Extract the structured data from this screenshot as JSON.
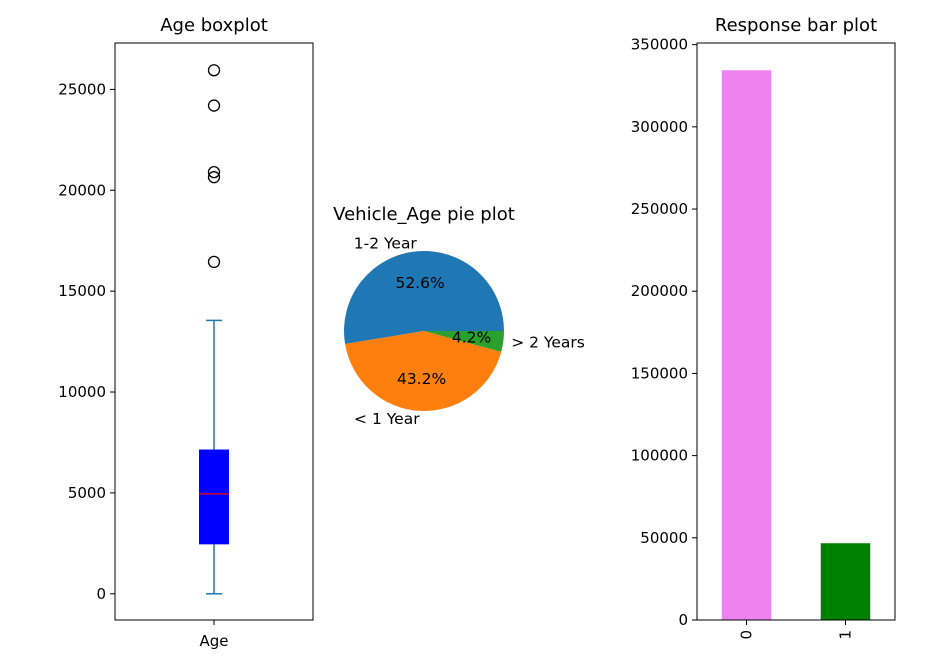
{
  "chart_data": [
    {
      "type": "boxplot",
      "title": "Age boxplot",
      "category": "Age",
      "ylim": [
        -1300,
        27300
      ],
      "yticks": [
        0,
        5000,
        10000,
        15000,
        20000,
        25000
      ],
      "yticklabels": [
        "0",
        "5000",
        "10000",
        "15000",
        "20000",
        "25000"
      ],
      "whisker_low": 0,
      "q1": 2450,
      "median": 4950,
      "q3": 7150,
      "whisker_high": 13550,
      "outliers": [
        16450,
        20650,
        20900,
        24200,
        25950
      ],
      "colors": {
        "box": "#0000ff",
        "median": "#ff0000",
        "whisker": "#1f77b4"
      }
    },
    {
      "type": "pie",
      "title": "Vehicle_Age pie plot",
      "slices": [
        {
          "label": "1-2 Year",
          "pct_label": "52.6%",
          "value": 52.6,
          "color": "#1f77b4"
        },
        {
          "label": "< 1 Year",
          "pct_label": "43.2%",
          "value": 43.2,
          "color": "#ff7f0e"
        },
        {
          "label": "> 2 Years",
          "pct_label": "4.2%",
          "value": 4.2,
          "color": "#2ca02c"
        }
      ]
    },
    {
      "type": "bar",
      "title": "Response bar plot",
      "categories": [
        "0",
        "1"
      ],
      "values": [
        334400,
        46700
      ],
      "colors": [
        "#ee82ee",
        "#008000"
      ],
      "ylim": [
        0,
        351000
      ],
      "yticks": [
        0,
        50000,
        100000,
        150000,
        200000,
        250000,
        300000,
        350000
      ],
      "yticklabels": [
        "0",
        "50000",
        "100000",
        "150000",
        "200000",
        "250000",
        "300000",
        "350000"
      ]
    }
  ]
}
